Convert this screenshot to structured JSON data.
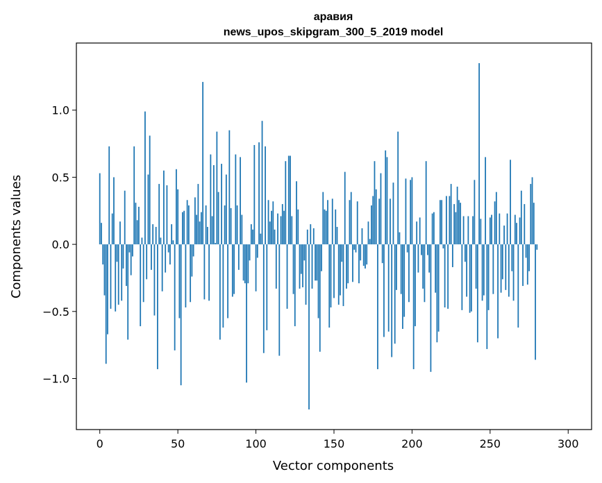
{
  "chart_data": {
    "type": "bar",
    "title": "аравия",
    "subtitle": "news_upos_skipgram_300_5_2019 model",
    "xlabel": "Vector components",
    "ylabel": "Components values",
    "xlim": [
      -15,
      315
    ],
    "ylim": [
      -1.38,
      1.5
    ],
    "xticks": [
      0,
      50,
      100,
      150,
      200,
      250,
      300
    ],
    "xtick_labels": [
      "0",
      "50",
      "100",
      "150",
      "200",
      "250",
      "300"
    ],
    "yticks": [
      -1.0,
      -0.5,
      0.0,
      0.5,
      1.0
    ],
    "ytick_labels": [
      "−1.0",
      "−0.5",
      "0.0",
      "0.5",
      "1.0"
    ],
    "grid": false,
    "bar_color": "#1f77b4",
    "x_start": 0,
    "values": [
      0.53,
      0.16,
      -0.15,
      -0.38,
      -0.89,
      -0.67,
      0.73,
      -0.48,
      0.23,
      0.5,
      -0.5,
      -0.13,
      -0.45,
      0.17,
      -0.42,
      -0.18,
      0.4,
      -0.31,
      -0.71,
      -0.06,
      -0.23,
      -0.09,
      0.73,
      0.31,
      0.18,
      0.28,
      -0.61,
      0.05,
      -0.43,
      0.99,
      -0.26,
      0.52,
      0.81,
      -0.19,
      0.15,
      -0.53,
      0.13,
      -0.93,
      0.45,
      0.05,
      -0.35,
      0.55,
      -0.21,
      0.44,
      -0.06,
      -0.15,
      0.15,
      0.03,
      -0.79,
      0.56,
      0.41,
      -0.55,
      -1.05,
      0.24,
      0.25,
      -0.47,
      0.33,
      0.29,
      -0.43,
      -0.24,
      -0.09,
      0.35,
      0.22,
      0.45,
      0.17,
      0.24,
      1.21,
      -0.41,
      0.29,
      0.13,
      -0.42,
      0.67,
      0.21,
      0.59,
      0.01,
      0.84,
      0.39,
      -0.71,
      0.6,
      -0.62,
      0.29,
      0.52,
      -0.55,
      0.85,
      0.27,
      -0.39,
      -0.37,
      0.67,
      0.29,
      -0.19,
      0.65,
      0.22,
      -0.27,
      -0.29,
      -1.03,
      -0.29,
      -0.12,
      0.15,
      0.11,
      0.74,
      -0.35,
      -0.1,
      0.76,
      0.08,
      0.92,
      -0.81,
      0.73,
      -0.64,
      0.33,
      0.17,
      0.25,
      0.32,
      0.11,
      -0.33,
      0.23,
      -0.83,
      0.21,
      0.3,
      0.25,
      0.62,
      -0.48,
      0.66,
      0.66,
      0.21,
      -0.37,
      -0.61,
      0.47,
      0.26,
      -0.33,
      -0.22,
      -0.32,
      -0.12,
      -0.45,
      0.11,
      -1.23,
      0.15,
      -0.33,
      0.12,
      -0.27,
      -0.27,
      -0.55,
      -0.8,
      -0.2,
      0.39,
      0.26,
      0.25,
      0.33,
      -0.62,
      -0.47,
      0.34,
      -0.4,
      0.26,
      0.13,
      -0.45,
      -0.38,
      -0.13,
      -0.46,
      0.54,
      -0.33,
      -0.29,
      0.33,
      0.39,
      -0.28,
      -0.04,
      -0.06,
      0.32,
      -0.29,
      -0.12,
      0.12,
      -0.16,
      -0.18,
      -0.15,
      0.17,
      0.04,
      0.29,
      0.36,
      0.62,
      0.41,
      -0.93,
      0.34,
      0.53,
      -0.14,
      -0.69,
      0.7,
      0.65,
      -0.65,
      0.34,
      -0.84,
      0.46,
      -0.74,
      -0.34,
      0.84,
      0.09,
      -0.37,
      -0.63,
      -0.54,
      0.49,
      -0.06,
      -0.43,
      0.48,
      0.5,
      -0.93,
      -0.61,
      0.17,
      -0.21,
      0.2,
      -0.08,
      -0.33,
      -0.43,
      0.62,
      -0.08,
      -0.21,
      -0.95,
      0.23,
      0.24,
      -0.36,
      -0.73,
      -0.65,
      0.33,
      0.33,
      -0.03,
      -0.47,
      0.36,
      -0.48,
      0.36,
      0.45,
      -0.17,
      0.3,
      0.24,
      0.43,
      0.33,
      0.31,
      -0.49,
      0.21,
      -0.13,
      -0.39,
      0.21,
      -0.51,
      -0.5,
      0.21,
      0.48,
      -0.33,
      -0.73,
      1.35,
      0.19,
      -0.42,
      -0.38,
      0.65,
      -0.78,
      -0.49,
      0.2,
      0.22,
      -0.37,
      0.32,
      0.39,
      -0.7,
      0.23,
      -0.36,
      -0.26,
      0.14,
      -0.34,
      0.23,
      -0.39,
      0.63,
      -0.2,
      -0.42,
      0.22,
      0.16,
      -0.62,
      0.2,
      0.4,
      -0.31,
      0.3,
      -0.1,
      -0.3,
      -0.2,
      0.45,
      0.5,
      0.31,
      -0.86,
      -0.04
    ]
  }
}
